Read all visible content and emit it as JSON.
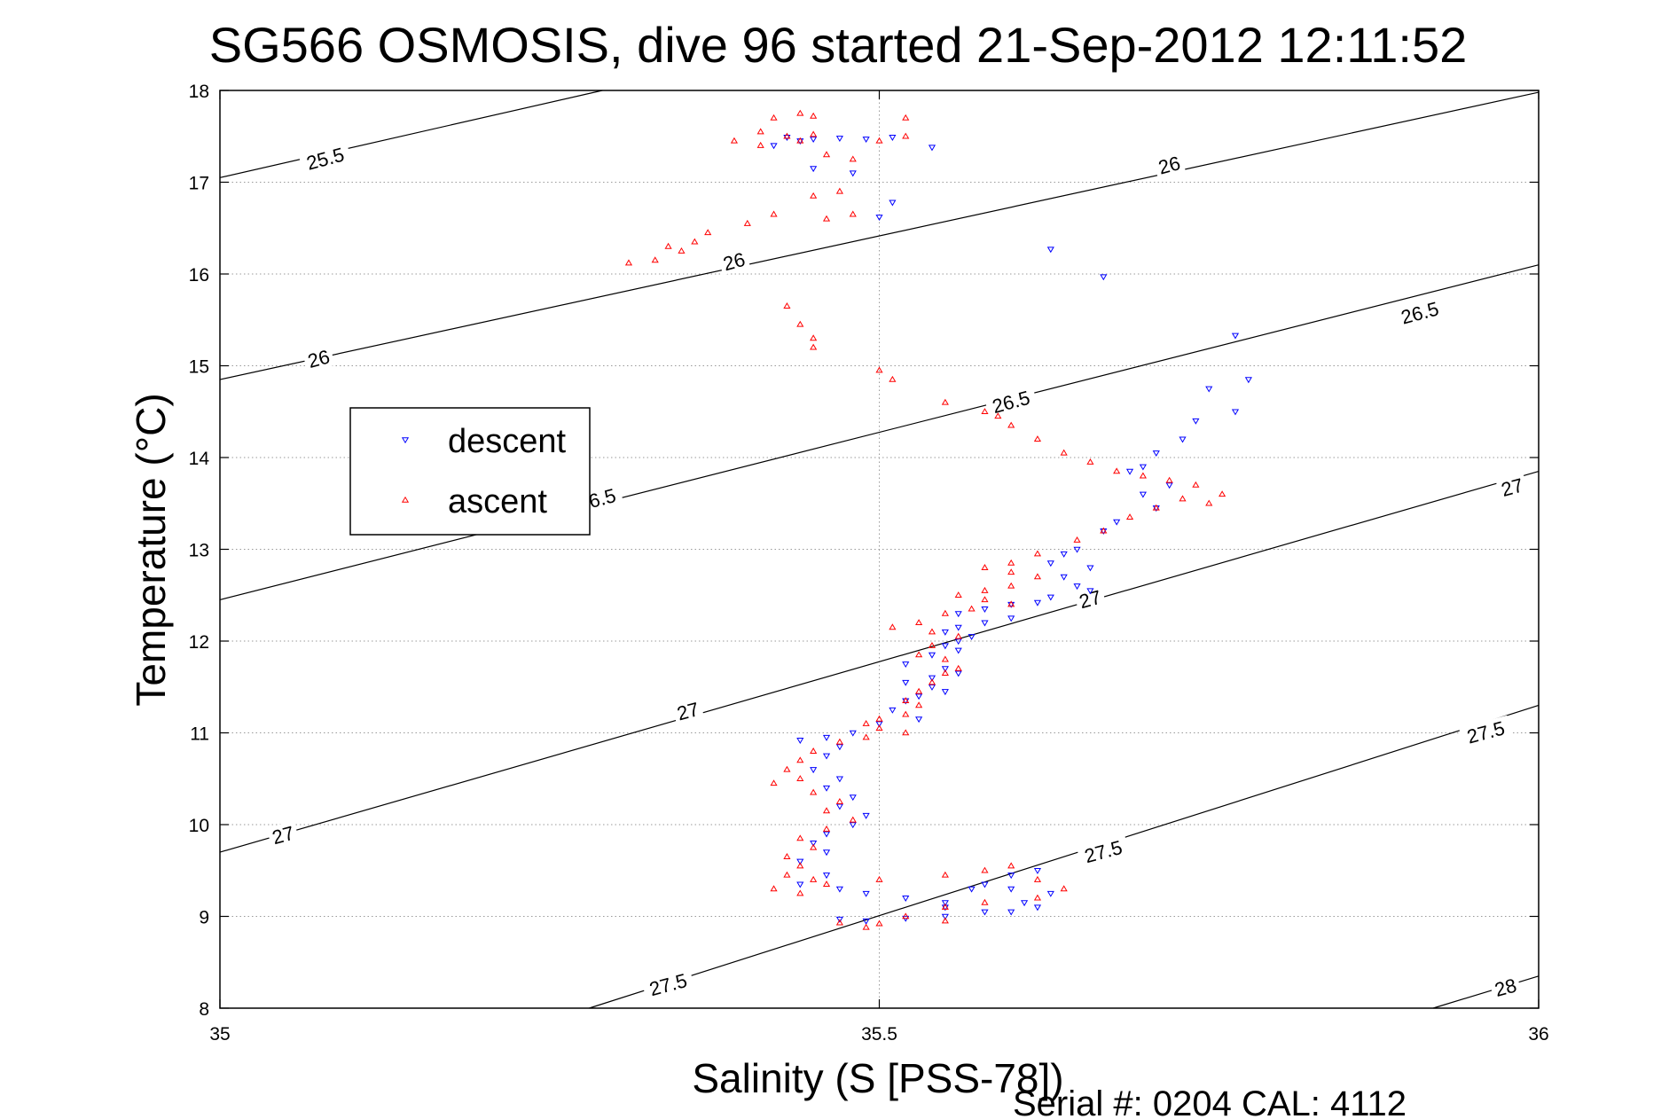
{
  "chart_data": {
    "type": "scatter",
    "title": "SG566 OSMOSIS, dive 96 started 21-Sep-2012 12:11:52",
    "xlabel": "Salinity (S [PSS-78])",
    "ylabel": "Temperature (°C)",
    "footer": "Serial #: 0204  CAL: 4112",
    "xlim": [
      35,
      36
    ],
    "ylim": [
      8,
      18
    ],
    "x_ticks": [
      "35",
      "35.5",
      "36"
    ],
    "x_tick_values": [
      35,
      35.5,
      36
    ],
    "y_ticks": [
      "8",
      "9",
      "10",
      "11",
      "12",
      "13",
      "14",
      "15",
      "16",
      "17",
      "18"
    ],
    "y_tick_values": [
      8,
      9,
      10,
      11,
      12,
      13,
      14,
      15,
      16,
      17,
      18
    ],
    "grid": true,
    "legend": {
      "position": "left-middle",
      "entries": [
        "descent",
        "ascent"
      ]
    },
    "colors": {
      "descent": "#0000ff",
      "ascent": "#ff0000"
    },
    "density_contours": [
      {
        "level": "25.5",
        "points": [
          [
            35,
            17.05
          ],
          [
            35.29,
            18.0
          ]
        ]
      },
      {
        "level": "26",
        "points": [
          [
            35,
            14.85
          ],
          [
            36,
            17.98
          ]
        ]
      },
      {
        "level": "26.5",
        "points": [
          [
            35,
            12.45
          ],
          [
            36,
            16.1
          ]
        ]
      },
      {
        "level": "27",
        "points": [
          [
            35,
            9.7
          ],
          [
            36,
            13.85
          ]
        ]
      },
      {
        "level": "27.5",
        "points": [
          [
            35.28,
            8.0
          ],
          [
            36,
            11.3
          ]
        ]
      },
      {
        "level": "28",
        "points": [
          [
            35.92,
            8.0
          ],
          [
            36,
            8.35
          ]
        ]
      }
    ],
    "contour_labels": [
      {
        "text": "25.5",
        "x": 35.08,
        "y": 17.25
      },
      {
        "text": "26",
        "x": 35.72,
        "y": 17.18
      },
      {
        "text": "26",
        "x": 35.39,
        "y": 16.13
      },
      {
        "text": "26",
        "x": 35.075,
        "y": 15.07
      },
      {
        "text": "26.5",
        "x": 35.91,
        "y": 15.57
      },
      {
        "text": "26.5",
        "x": 35.6,
        "y": 14.6
      },
      {
        "text": "6.5",
        "x": 35.29,
        "y": 13.55
      },
      {
        "text": "27",
        "x": 35.98,
        "y": 13.67
      },
      {
        "text": "27",
        "x": 35.66,
        "y": 12.45
      },
      {
        "text": "27",
        "x": 35.355,
        "y": 11.23
      },
      {
        "text": "27",
        "x": 35.048,
        "y": 9.88
      },
      {
        "text": "27.5",
        "x": 35.96,
        "y": 11.0
      },
      {
        "text": "27.5",
        "x": 35.67,
        "y": 9.7
      },
      {
        "text": "27.5",
        "x": 35.34,
        "y": 8.25
      },
      {
        "text": "28",
        "x": 35.975,
        "y": 8.22
      }
    ],
    "series": [
      {
        "name": "descent",
        "marker": "triangle-down",
        "points": [
          [
            35.43,
            17.49
          ],
          [
            35.44,
            17.45
          ],
          [
            35.42,
            17.4
          ],
          [
            35.45,
            17.47
          ],
          [
            35.47,
            17.48
          ],
          [
            35.49,
            17.47
          ],
          [
            35.51,
            17.49
          ],
          [
            35.54,
            17.38
          ],
          [
            35.45,
            17.15
          ],
          [
            35.48,
            17.1
          ],
          [
            35.51,
            16.78
          ],
          [
            35.5,
            16.62
          ],
          [
            35.63,
            16.27
          ],
          [
            35.67,
            15.97
          ],
          [
            35.77,
            15.33
          ],
          [
            35.78,
            14.85
          ],
          [
            35.77,
            14.5
          ],
          [
            35.75,
            14.75
          ],
          [
            35.74,
            14.4
          ],
          [
            35.73,
            14.2
          ],
          [
            35.71,
            14.05
          ],
          [
            35.7,
            13.9
          ],
          [
            35.69,
            13.85
          ],
          [
            35.72,
            13.7
          ],
          [
            35.7,
            13.6
          ],
          [
            35.71,
            13.45
          ],
          [
            35.68,
            13.3
          ],
          [
            35.67,
            13.2
          ],
          [
            35.65,
            13.0
          ],
          [
            35.64,
            12.95
          ],
          [
            35.63,
            12.85
          ],
          [
            35.66,
            12.8
          ],
          [
            35.64,
            12.7
          ],
          [
            35.65,
            12.6
          ],
          [
            35.66,
            12.55
          ],
          [
            35.63,
            12.48
          ],
          [
            35.62,
            12.42
          ],
          [
            35.6,
            12.4
          ],
          [
            35.58,
            12.35
          ],
          [
            35.56,
            12.3
          ],
          [
            35.6,
            12.25
          ],
          [
            35.58,
            12.2
          ],
          [
            35.56,
            12.15
          ],
          [
            35.55,
            12.1
          ],
          [
            35.57,
            12.05
          ],
          [
            35.56,
            12.0
          ],
          [
            35.55,
            11.95
          ],
          [
            35.56,
            11.9
          ],
          [
            35.54,
            11.85
          ],
          [
            35.52,
            11.75
          ],
          [
            35.55,
            11.7
          ],
          [
            35.56,
            11.65
          ],
          [
            35.54,
            11.6
          ],
          [
            35.52,
            11.55
          ],
          [
            35.54,
            11.5
          ],
          [
            35.55,
            11.45
          ],
          [
            35.53,
            11.4
          ],
          [
            35.52,
            11.35
          ],
          [
            35.51,
            11.25
          ],
          [
            35.53,
            11.15
          ],
          [
            35.5,
            11.1
          ],
          [
            35.48,
            11.0
          ],
          [
            35.46,
            10.95
          ],
          [
            35.44,
            10.92
          ],
          [
            35.47,
            10.85
          ],
          [
            35.46,
            10.75
          ],
          [
            35.45,
            10.6
          ],
          [
            35.47,
            10.5
          ],
          [
            35.46,
            10.4
          ],
          [
            35.48,
            10.3
          ],
          [
            35.47,
            10.2
          ],
          [
            35.49,
            10.1
          ],
          [
            35.48,
            10.0
          ],
          [
            35.46,
            9.9
          ],
          [
            35.45,
            9.8
          ],
          [
            35.46,
            9.7
          ],
          [
            35.44,
            9.6
          ],
          [
            35.46,
            9.45
          ],
          [
            35.44,
            9.35
          ],
          [
            35.47,
            9.3
          ],
          [
            35.49,
            9.25
          ],
          [
            35.52,
            9.2
          ],
          [
            35.55,
            9.15
          ],
          [
            35.57,
            9.3
          ],
          [
            35.58,
            9.35
          ],
          [
            35.6,
            9.45
          ],
          [
            35.62,
            9.5
          ],
          [
            35.6,
            9.3
          ],
          [
            35.61,
            9.15
          ],
          [
            35.63,
            9.25
          ],
          [
            35.58,
            9.05
          ],
          [
            35.55,
            9.0
          ],
          [
            35.52,
            8.98
          ],
          [
            35.49,
            8.95
          ],
          [
            35.47,
            8.97
          ],
          [
            35.55,
            9.1
          ],
          [
            35.6,
            9.05
          ],
          [
            35.62,
            9.1
          ]
        ]
      },
      {
        "name": "ascent",
        "marker": "triangle-up",
        "points": [
          [
            35.44,
            17.75
          ],
          [
            35.42,
            17.7
          ],
          [
            35.45,
            17.72
          ],
          [
            35.41,
            17.55
          ],
          [
            35.43,
            17.5
          ],
          [
            35.45,
            17.52
          ],
          [
            35.39,
            17.45
          ],
          [
            35.41,
            17.4
          ],
          [
            35.44,
            17.45
          ],
          [
            35.46,
            17.3
          ],
          [
            35.5,
            17.45
          ],
          [
            35.52,
            17.5
          ],
          [
            35.52,
            17.7
          ],
          [
            35.48,
            17.25
          ],
          [
            35.47,
            16.9
          ],
          [
            35.45,
            16.85
          ],
          [
            35.48,
            16.65
          ],
          [
            35.46,
            16.6
          ],
          [
            35.42,
            16.65
          ],
          [
            35.4,
            16.55
          ],
          [
            35.37,
            16.45
          ],
          [
            35.36,
            16.35
          ],
          [
            35.34,
            16.3
          ],
          [
            35.35,
            16.25
          ],
          [
            35.33,
            16.15
          ],
          [
            35.31,
            16.12
          ],
          [
            35.43,
            15.65
          ],
          [
            35.44,
            15.45
          ],
          [
            35.45,
            15.3
          ],
          [
            35.45,
            15.2
          ],
          [
            35.5,
            14.95
          ],
          [
            35.51,
            14.85
          ],
          [
            35.55,
            14.6
          ],
          [
            35.58,
            14.5
          ],
          [
            35.59,
            14.45
          ],
          [
            35.6,
            14.35
          ],
          [
            35.62,
            14.2
          ],
          [
            35.64,
            14.05
          ],
          [
            35.66,
            13.95
          ],
          [
            35.68,
            13.85
          ],
          [
            35.7,
            13.8
          ],
          [
            35.72,
            13.75
          ],
          [
            35.74,
            13.7
          ],
          [
            35.76,
            13.6
          ],
          [
            35.75,
            13.5
          ],
          [
            35.73,
            13.55
          ],
          [
            35.71,
            13.45
          ],
          [
            35.69,
            13.35
          ],
          [
            35.67,
            13.2
          ],
          [
            35.65,
            13.1
          ],
          [
            35.62,
            12.95
          ],
          [
            35.6,
            12.85
          ],
          [
            35.58,
            12.8
          ],
          [
            35.6,
            12.75
          ],
          [
            35.62,
            12.7
          ],
          [
            35.6,
            12.6
          ],
          [
            35.58,
            12.55
          ],
          [
            35.56,
            12.5
          ],
          [
            35.58,
            12.45
          ],
          [
            35.6,
            12.4
          ],
          [
            35.57,
            12.35
          ],
          [
            35.55,
            12.3
          ],
          [
            35.53,
            12.2
          ],
          [
            35.51,
            12.15
          ],
          [
            35.54,
            12.1
          ],
          [
            35.56,
            12.05
          ],
          [
            35.54,
            11.95
          ],
          [
            35.53,
            11.85
          ],
          [
            35.55,
            11.8
          ],
          [
            35.56,
            11.7
          ],
          [
            35.55,
            11.65
          ],
          [
            35.54,
            11.55
          ],
          [
            35.53,
            11.45
          ],
          [
            35.52,
            11.35
          ],
          [
            35.53,
            11.3
          ],
          [
            35.52,
            11.2
          ],
          [
            35.5,
            11.15
          ],
          [
            35.49,
            11.1
          ],
          [
            35.5,
            11.05
          ],
          [
            35.52,
            11.0
          ],
          [
            35.49,
            10.95
          ],
          [
            35.47,
            10.9
          ],
          [
            35.45,
            10.8
          ],
          [
            35.44,
            10.7
          ],
          [
            35.43,
            10.6
          ],
          [
            35.44,
            10.5
          ],
          [
            35.42,
            10.45
          ],
          [
            35.45,
            10.35
          ],
          [
            35.47,
            10.25
          ],
          [
            35.46,
            10.15
          ],
          [
            35.48,
            10.05
          ],
          [
            35.46,
            9.95
          ],
          [
            35.44,
            9.85
          ],
          [
            35.45,
            9.75
          ],
          [
            35.43,
            9.65
          ],
          [
            35.44,
            9.55
          ],
          [
            35.43,
            9.45
          ],
          [
            35.45,
            9.4
          ],
          [
            35.42,
            9.3
          ],
          [
            35.44,
            9.25
          ],
          [
            35.46,
            9.35
          ],
          [
            35.5,
            9.4
          ],
          [
            35.55,
            9.45
          ],
          [
            35.58,
            9.5
          ],
          [
            35.6,
            9.55
          ],
          [
            35.62,
            9.4
          ],
          [
            35.64,
            9.3
          ],
          [
            35.62,
            9.2
          ],
          [
            35.58,
            9.15
          ],
          [
            35.55,
            9.1
          ],
          [
            35.52,
            9.0
          ],
          [
            35.5,
            8.92
          ],
          [
            35.49,
            8.88
          ],
          [
            35.47,
            8.93
          ],
          [
            35.55,
            8.95
          ]
        ]
      }
    ]
  }
}
